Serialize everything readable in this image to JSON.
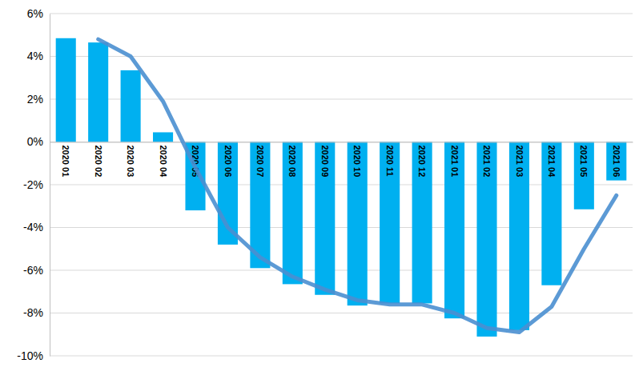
{
  "chart_data": {
    "type": "bar",
    "categories": [
      "2020 01",
      "2020 02",
      "2020 03",
      "2020 04",
      "2020 05",
      "2020 06",
      "2020 07",
      "2020 08",
      "2020 09",
      "2020 10",
      "2020 11",
      "2020 12",
      "2021 01",
      "2021 02",
      "2021 03",
      "2021 04",
      "2021 05",
      "2021 06"
    ],
    "series": [
      {
        "type": "bar",
        "color": "#00b0f0",
        "values": [
          4.85,
          4.65,
          3.35,
          0.45,
          -3.2,
          -4.8,
          -5.9,
          -6.65,
          -7.15,
          -7.65,
          -7.55,
          -7.55,
          -8.25,
          -9.1,
          -8.8,
          -6.7,
          -3.15,
          -1.8
        ]
      },
      {
        "type": "line",
        "color": "#4a8fd0",
        "values": [
          null,
          4.8,
          4.0,
          1.9,
          -1.2,
          -4.0,
          -5.4,
          -6.3,
          -6.9,
          -7.4,
          -7.6,
          -7.6,
          -8.0,
          -8.7,
          -8.9,
          -7.7,
          -5.0,
          -2.5
        ]
      }
    ],
    "ylim": [
      -10,
      6
    ],
    "yticks": [
      {
        "value": 6,
        "label": "6%"
      },
      {
        "value": 4,
        "label": "4%"
      },
      {
        "value": 2,
        "label": "2%"
      },
      {
        "value": 0,
        "label": "0%"
      },
      {
        "value": -2,
        "label": "-2%"
      },
      {
        "value": -4,
        "label": "-4%"
      },
      {
        "value": -6,
        "label": "-6%"
      },
      {
        "value": -8,
        "label": "-8%"
      },
      {
        "value": -10,
        "label": "-10%"
      }
    ],
    "grid": true
  }
}
